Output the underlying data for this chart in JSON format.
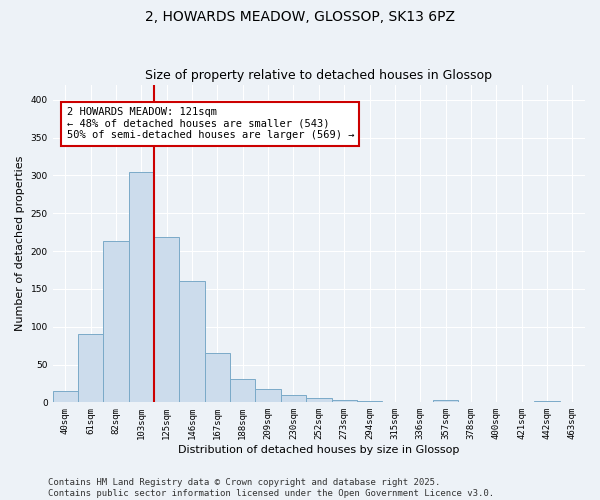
{
  "title": "2, HOWARDS MEADOW, GLOSSOP, SK13 6PZ",
  "subtitle": "Size of property relative to detached houses in Glossop",
  "xlabel": "Distribution of detached houses by size in Glossop",
  "ylabel": "Number of detached properties",
  "bin_labels": [
    "40sqm",
    "61sqm",
    "82sqm",
    "103sqm",
    "125sqm",
    "146sqm",
    "167sqm",
    "188sqm",
    "209sqm",
    "230sqm",
    "252sqm",
    "273sqm",
    "294sqm",
    "315sqm",
    "336sqm",
    "357sqm",
    "378sqm",
    "400sqm",
    "421sqm",
    "442sqm",
    "463sqm"
  ],
  "bar_values": [
    15,
    90,
    213,
    305,
    218,
    160,
    65,
    31,
    17,
    10,
    6,
    3,
    2,
    1,
    1,
    3,
    1,
    1,
    1,
    2,
    1
  ],
  "bar_color": "#ccdcec",
  "bar_edge_color": "#7aaac8",
  "vline_color": "#cc0000",
  "annotation_text": "2 HOWARDS MEADOW: 121sqm\n← 48% of detached houses are smaller (543)\n50% of semi-detached houses are larger (569) →",
  "annotation_box_facecolor": "#ffffff",
  "annotation_box_edgecolor": "#cc0000",
  "ylim": [
    0,
    420
  ],
  "yticks": [
    0,
    50,
    100,
    150,
    200,
    250,
    300,
    350,
    400
  ],
  "background_color": "#edf2f7",
  "grid_color": "#ffffff",
  "footer_text": "Contains HM Land Registry data © Crown copyright and database right 2025.\nContains public sector information licensed under the Open Government Licence v3.0.",
  "title_fontsize": 10,
  "subtitle_fontsize": 9,
  "axis_label_fontsize": 8,
  "tick_fontsize": 6.5,
  "annotation_fontsize": 7.5,
  "footer_fontsize": 6.5
}
